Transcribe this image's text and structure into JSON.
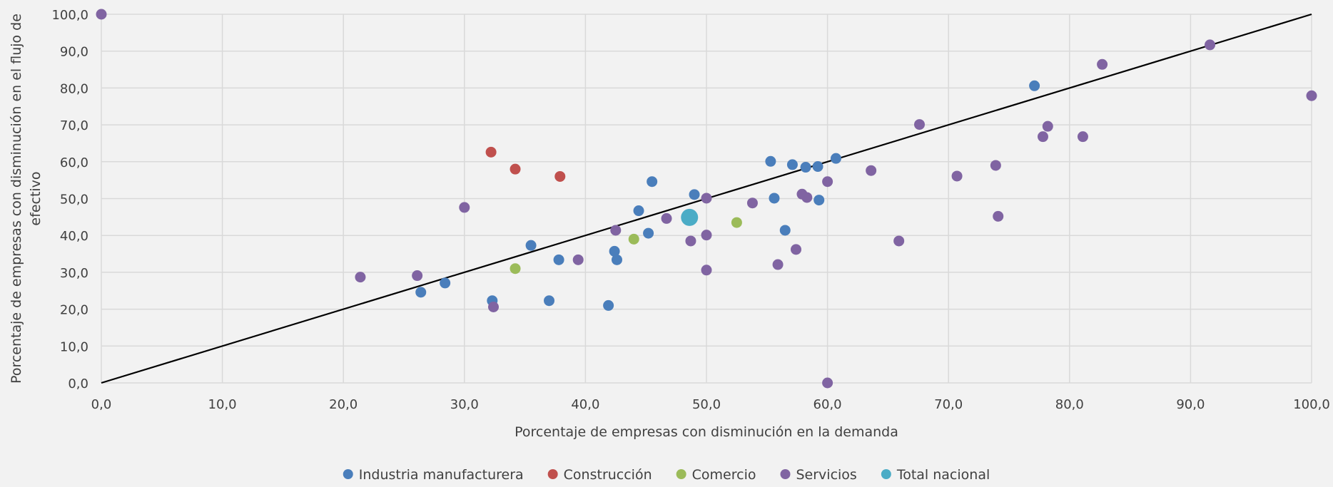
{
  "chart_data": {
    "type": "scatter",
    "title": "",
    "xlabel": "Porcentaje de empresas con disminución en la demanda",
    "ylabel_lines": [
      "Porcentaje de empresas con disminución en el flujo de",
      "efectivo"
    ],
    "xlim": [
      0,
      100
    ],
    "ylim": [
      0,
      100
    ],
    "x_ticks": [
      "0,0",
      "10,0",
      "20,0",
      "30,0",
      "40,0",
      "50,0",
      "60,0",
      "70,0",
      "80,0",
      "90,0",
      "100,0"
    ],
    "y_ticks": [
      "0,0",
      "10,0",
      "20,0",
      "30,0",
      "40,0",
      "50,0",
      "60,0",
      "70,0",
      "80,0",
      "90,0",
      "100,0"
    ],
    "grid": true,
    "legend_position": "bottom",
    "reference_line": {
      "from": [
        0,
        0
      ],
      "to": [
        100,
        100
      ],
      "color": "#000000"
    },
    "series": [
      {
        "name": "Industria manufacturera",
        "color": "#4a7ebb",
        "points": [
          [
            26.4,
            24.6
          ],
          [
            28.4,
            27.1
          ],
          [
            32.3,
            22.3
          ],
          [
            35.5,
            37.3
          ],
          [
            37.0,
            22.3
          ],
          [
            37.8,
            33.4
          ],
          [
            41.9,
            21.0
          ],
          [
            42.4,
            35.7
          ],
          [
            42.6,
            33.4
          ],
          [
            44.4,
            46.7
          ],
          [
            45.2,
            40.6
          ],
          [
            45.5,
            54.6
          ],
          [
            49.0,
            51.1
          ],
          [
            55.3,
            60.1
          ],
          [
            55.6,
            50.1
          ],
          [
            56.5,
            41.4
          ],
          [
            57.1,
            59.2
          ],
          [
            58.2,
            58.5
          ],
          [
            59.2,
            58.7
          ],
          [
            59.3,
            49.6
          ],
          [
            60.7,
            60.9
          ],
          [
            77.1,
            80.6
          ]
        ]
      },
      {
        "name": "Construcción",
        "color": "#c0504d",
        "points": [
          [
            32.2,
            62.6
          ],
          [
            34.2,
            58.0
          ],
          [
            37.9,
            56.0
          ]
        ]
      },
      {
        "name": "Comercio",
        "color": "#9bbb59",
        "points": [
          [
            34.2,
            31.0
          ],
          [
            44.0,
            39.0
          ],
          [
            52.5,
            43.5
          ]
        ]
      },
      {
        "name": "Servicios",
        "color": "#8064a2",
        "points": [
          [
            0.0,
            100.0
          ],
          [
            21.4,
            28.7
          ],
          [
            26.1,
            29.1
          ],
          [
            30.0,
            47.6
          ],
          [
            32.4,
            20.6
          ],
          [
            39.4,
            33.4
          ],
          [
            42.5,
            41.4
          ],
          [
            46.7,
            44.6
          ],
          [
            48.7,
            38.5
          ],
          [
            50.0,
            50.1
          ],
          [
            50.0,
            40.1
          ],
          [
            50.0,
            30.6
          ],
          [
            53.8,
            48.8
          ],
          [
            55.9,
            32.1
          ],
          [
            57.4,
            36.2
          ],
          [
            57.9,
            51.2
          ],
          [
            58.3,
            50.3
          ],
          [
            60.0,
            54.6
          ],
          [
            60.0,
            0.0
          ],
          [
            63.6,
            57.6
          ],
          [
            65.9,
            38.5
          ],
          [
            67.6,
            70.1
          ],
          [
            70.7,
            56.1
          ],
          [
            73.9,
            59.0
          ],
          [
            74.1,
            45.2
          ],
          [
            77.8,
            66.8
          ],
          [
            78.2,
            69.6
          ],
          [
            81.1,
            66.8
          ],
          [
            82.7,
            86.4
          ],
          [
            91.6,
            91.7
          ],
          [
            100.0,
            77.9
          ]
        ]
      },
      {
        "name": "Total nacional",
        "color": "#4bacc6",
        "points": [
          [
            48.6,
            44.9
          ]
        ]
      }
    ]
  }
}
